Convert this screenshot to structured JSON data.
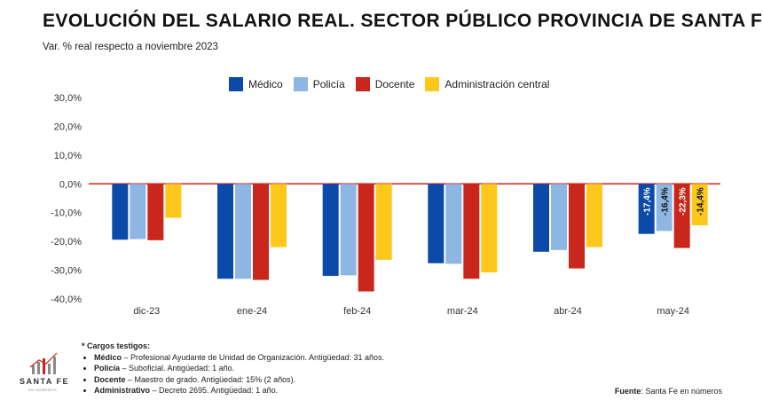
{
  "title": "EVOLUCIÓN DEL SALARIO REAL. SECTOR PÚBLICO PROVINCIA DE SANTA FE*",
  "subtitle": "Var. % real respecto a noviembre 2023",
  "colors": {
    "medico": "#0b4aa8",
    "policia": "#8db6e3",
    "docente": "#c9271c",
    "administracion": "#fdc71c",
    "zero_line": "#c9271c"
  },
  "chart_data": {
    "type": "bar",
    "categories": [
      "dic-23",
      "ene-24",
      "feb-24",
      "mar-24",
      "abr-24",
      "may-24"
    ],
    "series": [
      {
        "name": "Médico",
        "values": [
          -19.4,
          -33.0,
          -32.0,
          -27.6,
          -23.6,
          -17.4
        ]
      },
      {
        "name": "Policía",
        "values": [
          -19.2,
          -33.0,
          -31.8,
          -27.8,
          -23.0,
          -16.4
        ]
      },
      {
        "name": "Docente",
        "values": [
          -19.6,
          -33.4,
          -37.4,
          -33.0,
          -29.4,
          -22.3
        ]
      },
      {
        "name": "Administración central",
        "values": [
          -11.8,
          -22.0,
          -26.4,
          -30.8,
          -22.0,
          -14.4
        ]
      }
    ],
    "ylim": [
      -40,
      30
    ],
    "yticks": [
      "30,0%",
      "20,0%",
      "10,0%",
      "0,0%",
      "-10,0%",
      "-20,0%",
      "-30,0%",
      "-40,0%"
    ],
    "data_labels": {
      "category": "may-24",
      "labels": [
        "-17,4%",
        "-16,4%",
        "-22,3%",
        "-14,4%"
      ]
    },
    "legend_position": "top-center",
    "grid": false
  },
  "notes": {
    "title": "* Cargos testigos:",
    "items": [
      {
        "role": "Médico",
        "desc": " – Profesional Ayudante de Unidad de Organización. Antigüedad: 31 años."
      },
      {
        "role": "Policía",
        "desc": " – Suboficial. Antigüedad: 1 año."
      },
      {
        "role": "Docente",
        "desc": " – Maestro de grado. Antigüedad: 15% (2 años)."
      },
      {
        "role": "Administrativo",
        "desc": " – Decreto 2695. Antigüedad: 1 año."
      }
    ]
  },
  "source": {
    "label": "Fuente",
    "text": ": Santa Fe en números"
  },
  "logo": {
    "text": "SANTA FE",
    "sub": "EN NÚMEROS"
  }
}
